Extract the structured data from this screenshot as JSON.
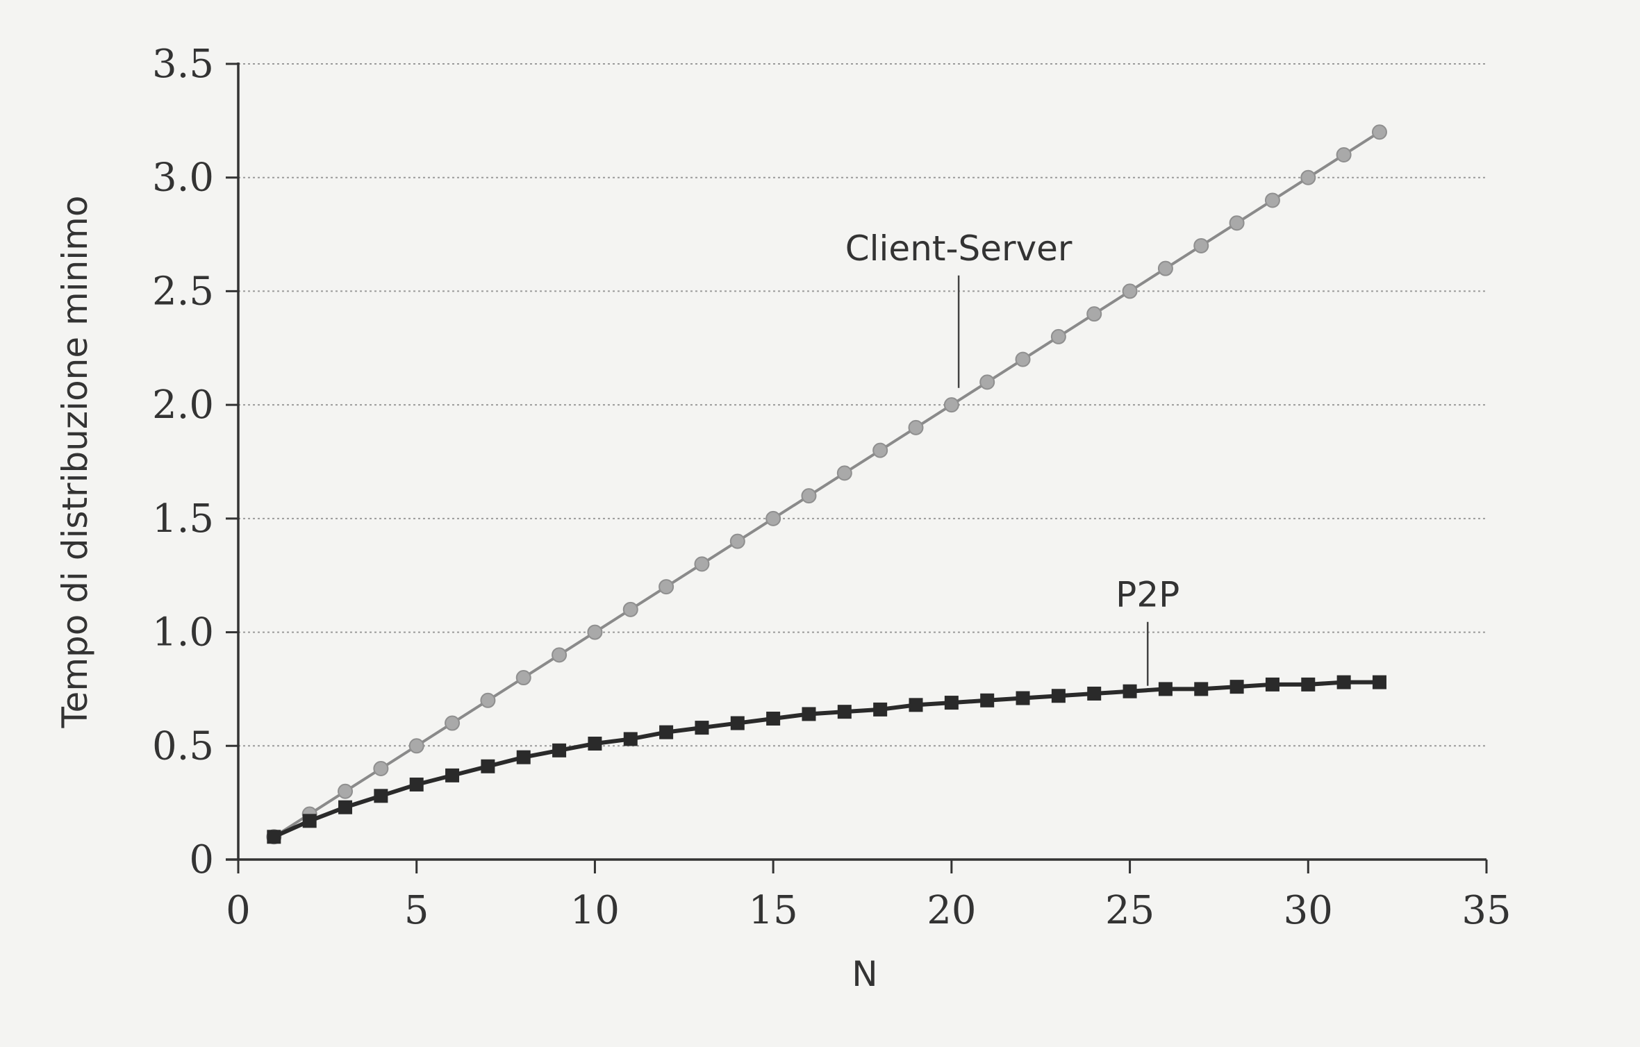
{
  "chart_data": {
    "type": "line",
    "xlabel": "N",
    "ylabel": "Tempo di distribuzione minimo",
    "xlim": [
      0,
      35
    ],
    "ylim": [
      0,
      3.5
    ],
    "xticks": [
      "0",
      "5",
      "10",
      "15",
      "20",
      "25",
      "30",
      "35"
    ],
    "yticks": [
      "0",
      "0.5",
      "1.0",
      "1.5",
      "2.0",
      "2.5",
      "3.0",
      "3.5"
    ],
    "grid": "horizontal dotted",
    "series": [
      {
        "name": "Client-Server",
        "color": "#8a8a8a",
        "marker": "circle",
        "x": [
          1,
          2,
          3,
          4,
          5,
          6,
          7,
          8,
          9,
          10,
          11,
          12,
          13,
          14,
          15,
          16,
          17,
          18,
          19,
          20,
          21,
          22,
          23,
          24,
          25,
          26,
          27,
          28,
          29,
          30,
          31,
          32
        ],
        "values": [
          0.1,
          0.2,
          0.3,
          0.4,
          0.5,
          0.6,
          0.7,
          0.8,
          0.9,
          1.0,
          1.1,
          1.2,
          1.3,
          1.4,
          1.5,
          1.6,
          1.7,
          1.8,
          1.9,
          2.0,
          2.1,
          2.2,
          2.3,
          2.4,
          2.5,
          2.6,
          2.7,
          2.8,
          2.9,
          3.0,
          3.1,
          3.2
        ]
      },
      {
        "name": "P2P",
        "color": "#2a2a2a",
        "marker": "square",
        "x": [
          1,
          2,
          3,
          4,
          5,
          6,
          7,
          8,
          9,
          10,
          11,
          12,
          13,
          14,
          15,
          16,
          17,
          18,
          19,
          20,
          21,
          22,
          23,
          24,
          25,
          26,
          27,
          28,
          29,
          30,
          31,
          32
        ],
        "values": [
          0.1,
          0.17,
          0.23,
          0.28,
          0.33,
          0.37,
          0.41,
          0.45,
          0.48,
          0.51,
          0.53,
          0.56,
          0.58,
          0.6,
          0.62,
          0.64,
          0.65,
          0.66,
          0.68,
          0.69,
          0.7,
          0.71,
          0.72,
          0.73,
          0.74,
          0.75,
          0.75,
          0.76,
          0.77,
          0.77,
          0.78,
          0.78
        ]
      }
    ],
    "annotations": [
      {
        "text": "Client-Server",
        "series": "Client-Server",
        "x": 20.2,
        "y": 2.05
      },
      {
        "text": "P2P",
        "series": "P2P",
        "x": 25.5,
        "y": 0.74
      }
    ]
  }
}
